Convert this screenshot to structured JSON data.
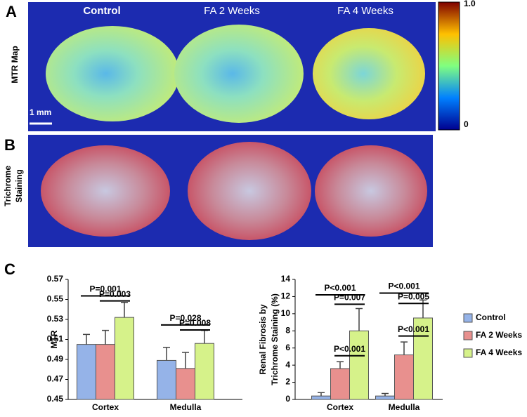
{
  "panels": {
    "a": {
      "label": "A",
      "row_label": "MTR Map",
      "columns": [
        "Control",
        "FA 2 Weeks",
        "FA 4 Weeks"
      ],
      "scale_bar": "1 mm",
      "colorbar": {
        "max": "1.0",
        "min": "0"
      }
    },
    "b": {
      "label": "B",
      "row_label": [
        "Trichrome",
        "Staining"
      ]
    },
    "c": {
      "label": "C"
    }
  },
  "chart_data": [
    {
      "type": "bar",
      "ylabel": "MTR",
      "categories": [
        "Cortex",
        "Medulla"
      ],
      "series": [
        {
          "color": "#95b3e8",
          "values": [
            0.505,
            0.489
          ],
          "errors": [
            0.01,
            0.013
          ]
        },
        {
          "color": "#e8908e",
          "values": [
            0.505,
            0.481
          ],
          "errors": [
            0.014,
            0.016
          ]
        },
        {
          "color": "#d6f28a",
          "values": [
            0.532,
            0.506
          ],
          "errors": [
            0.015,
            0.013
          ]
        }
      ],
      "ylim": [
        0.45,
        0.57
      ],
      "yticks": [
        0.45,
        0.47,
        0.49,
        0.51,
        0.53,
        0.55,
        0.57
      ],
      "annotations": [
        "P=0.001",
        "P=0.003",
        "P=0.028",
        "P=0.008"
      ]
    },
    {
      "type": "bar",
      "ylabel": [
        "Renal Fibrosis by",
        "Trichrome Staining (%)"
      ],
      "categories": [
        "Cortex",
        "Medulla"
      ],
      "series": [
        {
          "name": "Control",
          "color": "#95b3e8",
          "values": [
            0.4,
            0.4
          ],
          "errors": [
            0.4,
            0.3
          ]
        },
        {
          "name": "FA 2 Weeks",
          "color": "#e8908e",
          "values": [
            3.6,
            5.2
          ],
          "errors": [
            0.8,
            1.5
          ]
        },
        {
          "name": "FA 4 Weeks",
          "color": "#d6f28a",
          "values": [
            8.0,
            9.5
          ],
          "errors": [
            2.6,
            2.1
          ]
        }
      ],
      "ylim": [
        0,
        14
      ],
      "yticks": [
        0,
        2,
        4,
        6,
        8,
        10,
        12,
        14
      ],
      "annotations": [
        "P<0.001",
        "P=0.007",
        "P<0.001",
        "P<0.001",
        "P=0.005",
        "P<0.001"
      ]
    }
  ]
}
